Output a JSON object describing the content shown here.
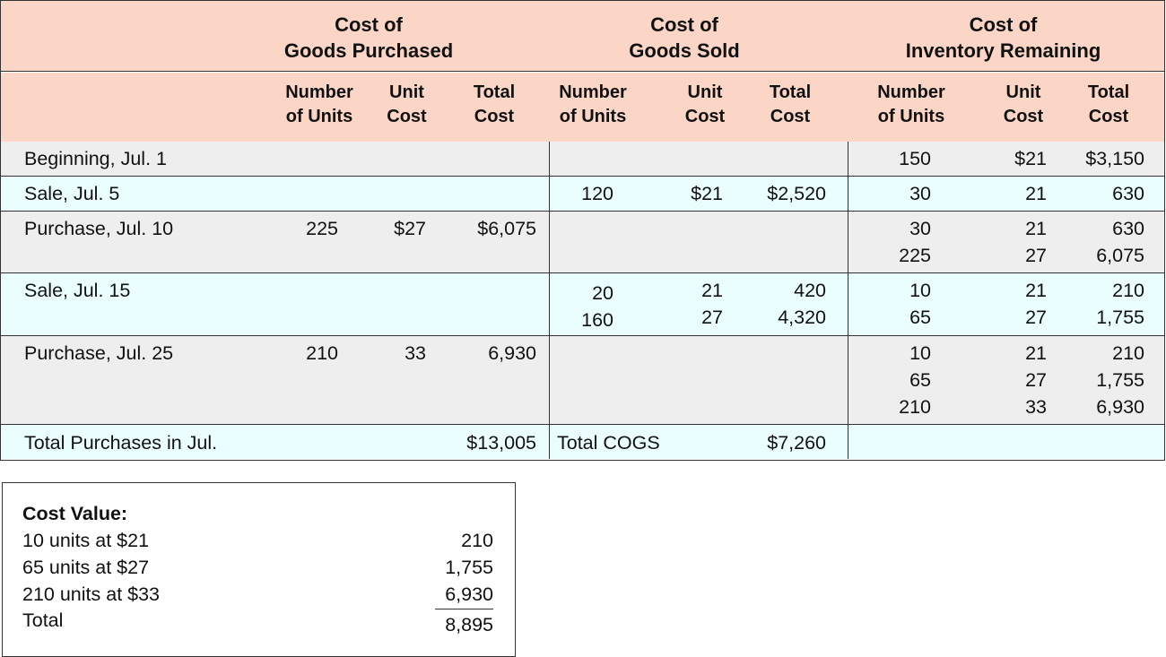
{
  "groups": [
    {
      "label": "Cost of\nGoods Purchased"
    },
    {
      "label": "Cost of\nGoods Sold"
    },
    {
      "label": "Cost of\nInventory Remaining"
    }
  ],
  "column_headers": [
    "Number\nof Units",
    "Unit\nCost",
    "Total\nCost",
    "Number\nof Units",
    "Unit\nCost",
    "Total\nCost",
    "Number\nof Units",
    "Unit\nCost",
    "Total\nCost"
  ],
  "rows": [
    {
      "label": "Beginning, Jul. 1",
      "shade": "gray",
      "purchased": [
        "",
        "",
        ""
      ],
      "sold": [
        "",
        "",
        ""
      ],
      "inventory": [
        "150",
        "$21",
        "$3,150"
      ]
    },
    {
      "label": "Sale, Jul. 5",
      "shade": "cyan",
      "purchased": [
        "",
        "",
        ""
      ],
      "sold": [
        "120",
        "$21",
        "$2,520"
      ],
      "inventory": [
        "30",
        "21",
        "630"
      ]
    },
    {
      "label": "Purchase, Jul. 10",
      "shade": "gray",
      "purchased": [
        "225",
        "$27",
        "$6,075"
      ],
      "sold": [
        "",
        "",
        ""
      ],
      "inventory": [
        "30\n225",
        "21\n27",
        "630\n6,075"
      ]
    },
    {
      "label": "Sale, Jul. 15",
      "shade": "cyan",
      "purchased": [
        "",
        "",
        ""
      ],
      "sold": [
        "20\n160",
        "21\n27",
        "420\n4,320"
      ],
      "inventory": [
        "10\n65",
        "21\n27",
        "210\n1,755"
      ]
    },
    {
      "label": "Purchase, Jul. 25",
      "shade": "gray",
      "purchased": [
        "210",
        "33",
        "6,930"
      ],
      "sold": [
        "",
        "",
        ""
      ],
      "inventory": [
        "10\n65\n210",
        "21\n27\n33",
        "210\n1,755\n6,930"
      ]
    }
  ],
  "totals": {
    "label": "Total Purchases in Jul.",
    "purchases": "$13,005",
    "cogs_label": "Total COGS",
    "cogs": "$7,260"
  },
  "cost_value": {
    "title": "Cost Value:",
    "lines": [
      {
        "label": "10 units at $21",
        "value": "210"
      },
      {
        "label": "65 units at $27",
        "value": "1,755"
      },
      {
        "label": "210 units at $33",
        "value": "6,930"
      }
    ],
    "total_label": "Total",
    "total_value": "8,895"
  }
}
